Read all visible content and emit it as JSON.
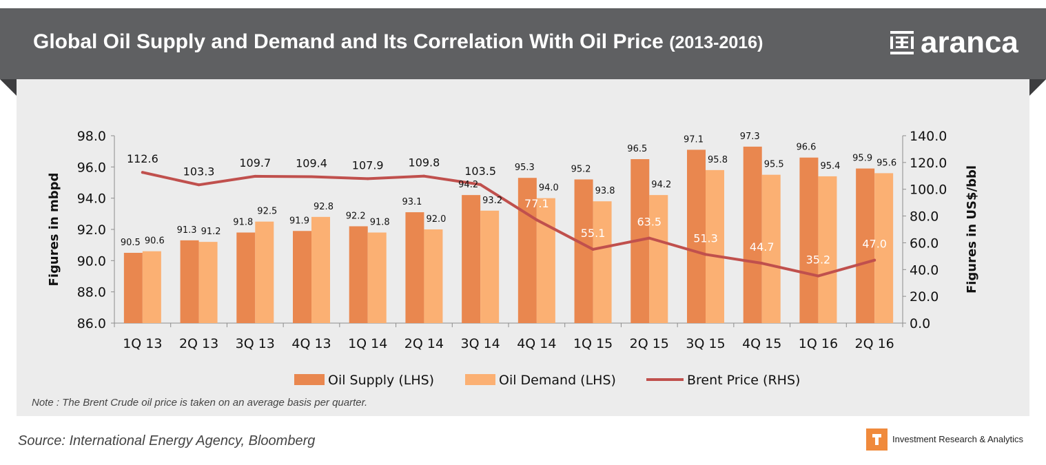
{
  "header": {
    "title_main": "Global Oil Supply and Demand and Its Correlation With Oil Price",
    "title_years": "(2013-2016)",
    "logo_text": "aranca"
  },
  "note": "Note : The Brent Crude oil price is  taken on an average basis per quarter.",
  "source": "Source: International Energy Agency, Bloomberg",
  "tagline": "Investment Research & Analytics",
  "colors": {
    "header_bg": "#5f6062",
    "panel_bg": "#ececec",
    "supply": "#e9874f",
    "demand": "#fbb073",
    "brent": "#c0504d"
  },
  "chart_data": {
    "type": "bar",
    "categories": [
      "1Q 13",
      "2Q 13",
      "3Q 13",
      "4Q 13",
      "1Q 14",
      "2Q 14",
      "3Q 14",
      "4Q 14",
      "1Q 15",
      "2Q 15",
      "3Q 15",
      "4Q 15",
      "1Q 16",
      "2Q 16"
    ],
    "series": [
      {
        "name": "Oil Supply (LHS)",
        "type": "bar",
        "axis": "left",
        "values": [
          90.5,
          91.3,
          91.8,
          91.9,
          92.2,
          93.1,
          94.2,
          95.3,
          95.2,
          96.5,
          97.1,
          97.3,
          96.6,
          95.9
        ]
      },
      {
        "name": "Oil Demand (LHS)",
        "type": "bar",
        "axis": "left",
        "values": [
          90.6,
          91.2,
          92.5,
          92.8,
          91.8,
          92.0,
          93.2,
          94.0,
          93.8,
          94.2,
          95.8,
          95.5,
          95.4,
          95.6
        ]
      },
      {
        "name": "Brent Price (RHS)",
        "type": "line",
        "axis": "right",
        "values": [
          112.6,
          103.3,
          109.7,
          109.4,
          107.9,
          109.8,
          103.5,
          77.1,
          55.1,
          63.5,
          51.3,
          44.7,
          35.2,
          47.0
        ]
      }
    ],
    "ylabel": "Figures in mbpd",
    "y2label": "Figures in US$/bbl",
    "ylim": [
      86,
      98
    ],
    "y2lim": [
      0,
      140
    ],
    "yticks": [
      "86.0",
      "88.0",
      "90.0",
      "92.0",
      "94.0",
      "96.0",
      "98.0"
    ],
    "y2ticks": [
      "0.0",
      "20.0",
      "40.0",
      "60.0",
      "80.0",
      "100.0",
      "120.0",
      "140.0"
    ],
    "legend_position": "bottom",
    "grid": false
  }
}
